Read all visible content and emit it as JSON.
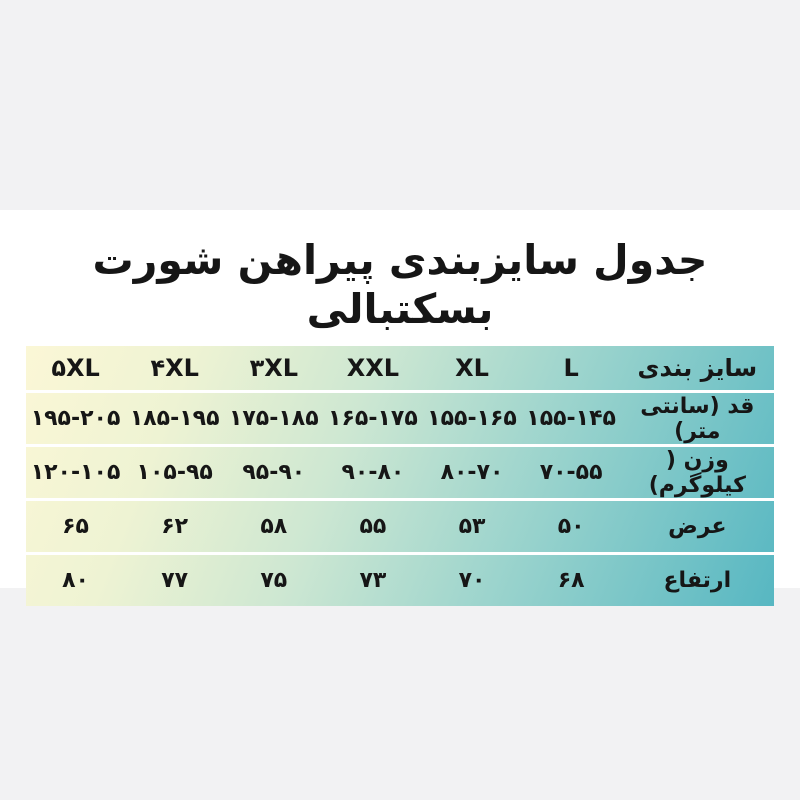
{
  "title": "جدول سایزبندی پیراهن شورت بسکتبالی",
  "colors": {
    "page_background": "#f2f2f3",
    "panel_background": "#ffffff",
    "gradient_left_yellow": "#fbf7d6",
    "gradient_mid_green": "#cde7d2",
    "gradient_right_teal": "#57b7c2",
    "text": "#161616",
    "row_separator": "#ffffff"
  },
  "table": {
    "header_label": "سایز بندی",
    "row_labels": {
      "height": "قد (سانتی متر)",
      "weight": "وزن ( کیلوگرم)",
      "width": "عرض",
      "length": "ارتفاع"
    },
    "columns": [
      {
        "size": "L",
        "height": "۱۵۵-۱۴۵",
        "weight": "۷۰-۵۵",
        "width": "۵۰",
        "length": "۶۸"
      },
      {
        "size": "XL",
        "height": "۱۵۵-۱۶۵",
        "weight": "۸۰-۷۰",
        "width": "۵۳",
        "length": "۷۰"
      },
      {
        "size": "XXL",
        "height": "۱۶۵-۱۷۵",
        "weight": "۹۰-۸۰",
        "width": "۵۵",
        "length": "۷۳"
      },
      {
        "size": "۳XL",
        "height": "۱۷۵-۱۸۵",
        "weight": "۹۵-۹۰",
        "width": "۵۸",
        "length": "۷۵"
      },
      {
        "size": "۴XL",
        "height": "۱۸۵-۱۹۵",
        "weight": "۱۰۵-۹۵",
        "width": "۶۲",
        "length": "۷۷"
      },
      {
        "size": "۵XL",
        "height": "۱۹۵-۲۰۵",
        "weight": "۱۲۰-۱۰۵",
        "width": "۶۵",
        "length": "۸۰"
      }
    ]
  },
  "chart_data": {
    "type": "table",
    "title": "جدول سایزبندی پیراهن شورت بسکتبالی",
    "title_translation": "Basketball shirt & shorts sizing chart",
    "columns": [
      "سایز بندی",
      "L",
      "XL",
      "XXL",
      "3XL",
      "4XL",
      "5XL"
    ],
    "rows": [
      {
        "label": "قد (سانتی متر)",
        "meaning": "height (cm)",
        "values": [
          "145-155",
          "155-165",
          "165-175",
          "175-185",
          "185-195",
          "195-205"
        ]
      },
      {
        "label": "وزن ( کیلوگرم)",
        "meaning": "weight (kg)",
        "values": [
          "55-70",
          "70-80",
          "80-90",
          "90-95",
          "95-105",
          "105-120"
        ]
      },
      {
        "label": "عرض",
        "meaning": "width",
        "values": [
          50,
          53,
          55,
          58,
          62,
          65
        ]
      },
      {
        "label": "ارتفاع",
        "meaning": "length/height",
        "values": [
          68,
          70,
          73,
          75,
          77,
          80
        ]
      }
    ],
    "layout": {
      "background_gradient": [
        "#fbf7d6",
        "#57b7c2"
      ],
      "row_separators": "thin white lines",
      "reading_direction": "rtl"
    }
  }
}
